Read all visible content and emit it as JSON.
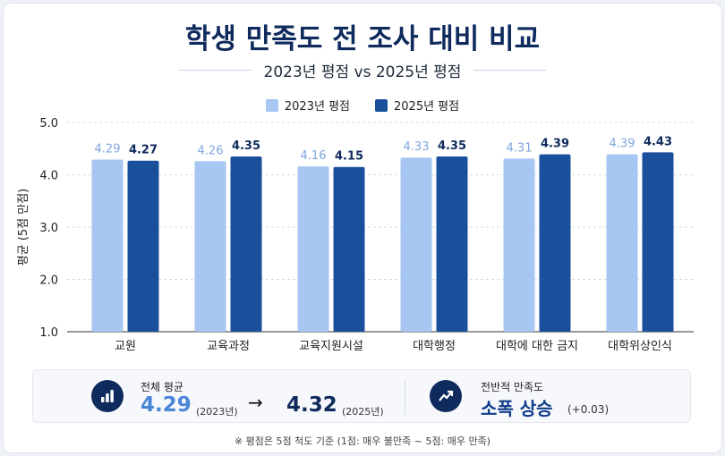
{
  "chart_data": {
    "type": "bar",
    "title": "학생 만족도 전 조사 대비 비교",
    "subtitle": "2023년 평점 vs 2025년 평점",
    "ylabel": "평균 (5점 만점)",
    "xlabel": "",
    "ylim": [
      1.0,
      5.0
    ],
    "yticks": [
      "1.0",
      "2.0",
      "3.0",
      "4.0",
      "5.0"
    ],
    "grid": true,
    "legend_position": "top",
    "categories": [
      "교원",
      "교육과정",
      "교육지원시설",
      "대학행정",
      "대학에 대한 금지",
      "대학위상인식"
    ],
    "series": [
      {
        "name": "2023년 평점",
        "color": "#a7c7f2",
        "label_color": "#7ea6de",
        "values": [
          4.29,
          4.26,
          4.16,
          4.33,
          4.31,
          4.39
        ]
      },
      {
        "name": "2025년 평점",
        "color": "#1a4f9c",
        "label_color": "#0f2a5c",
        "values": [
          4.27,
          4.35,
          4.15,
          4.35,
          4.39,
          4.43
        ]
      }
    ]
  },
  "summary": {
    "overall_label": "전체 평균",
    "value_2023": "4.29",
    "year_2023": "(2023년)",
    "arrow": "→",
    "value_2025": "4.32",
    "year_2025": "(2025년)",
    "trend_label": "전반적 만족도",
    "trend_value": "소폭 상승",
    "trend_delta": "(+0.03)",
    "icons": [
      "bar-chart-icon",
      "trending-up-icon"
    ]
  },
  "note": "※ 평점은 5점 척도 기준 (1점: 매우 불만족 ~ 5점: 매우 만족)"
}
